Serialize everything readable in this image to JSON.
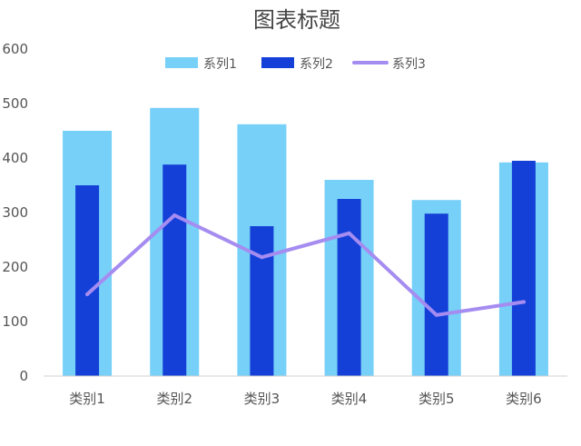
{
  "chart_data": {
    "type": "bar",
    "title": "图表标题",
    "xlabel": "",
    "ylabel": "",
    "categories": [
      "类别1",
      "类别2",
      "类别3",
      "类别4",
      "类别5",
      "类别6"
    ],
    "ylim": [
      0,
      600
    ],
    "yticks": [
      0,
      100,
      200,
      300,
      400,
      500,
      600
    ],
    "grid": false,
    "legend_position": "top",
    "series": [
      {
        "name": "系列1",
        "kind": "bar",
        "color": "#76D0F8",
        "values": [
          450,
          492,
          462,
          360,
          323,
          392
        ]
      },
      {
        "name": "系列2",
        "kind": "bar",
        "color": "#1540D8",
        "values": [
          350,
          388,
          275,
          325,
          298,
          395
        ]
      },
      {
        "name": "系列3",
        "kind": "line",
        "color": "#A58CF0",
        "values": [
          150,
          295,
          218,
          262,
          112,
          136
        ]
      }
    ]
  }
}
